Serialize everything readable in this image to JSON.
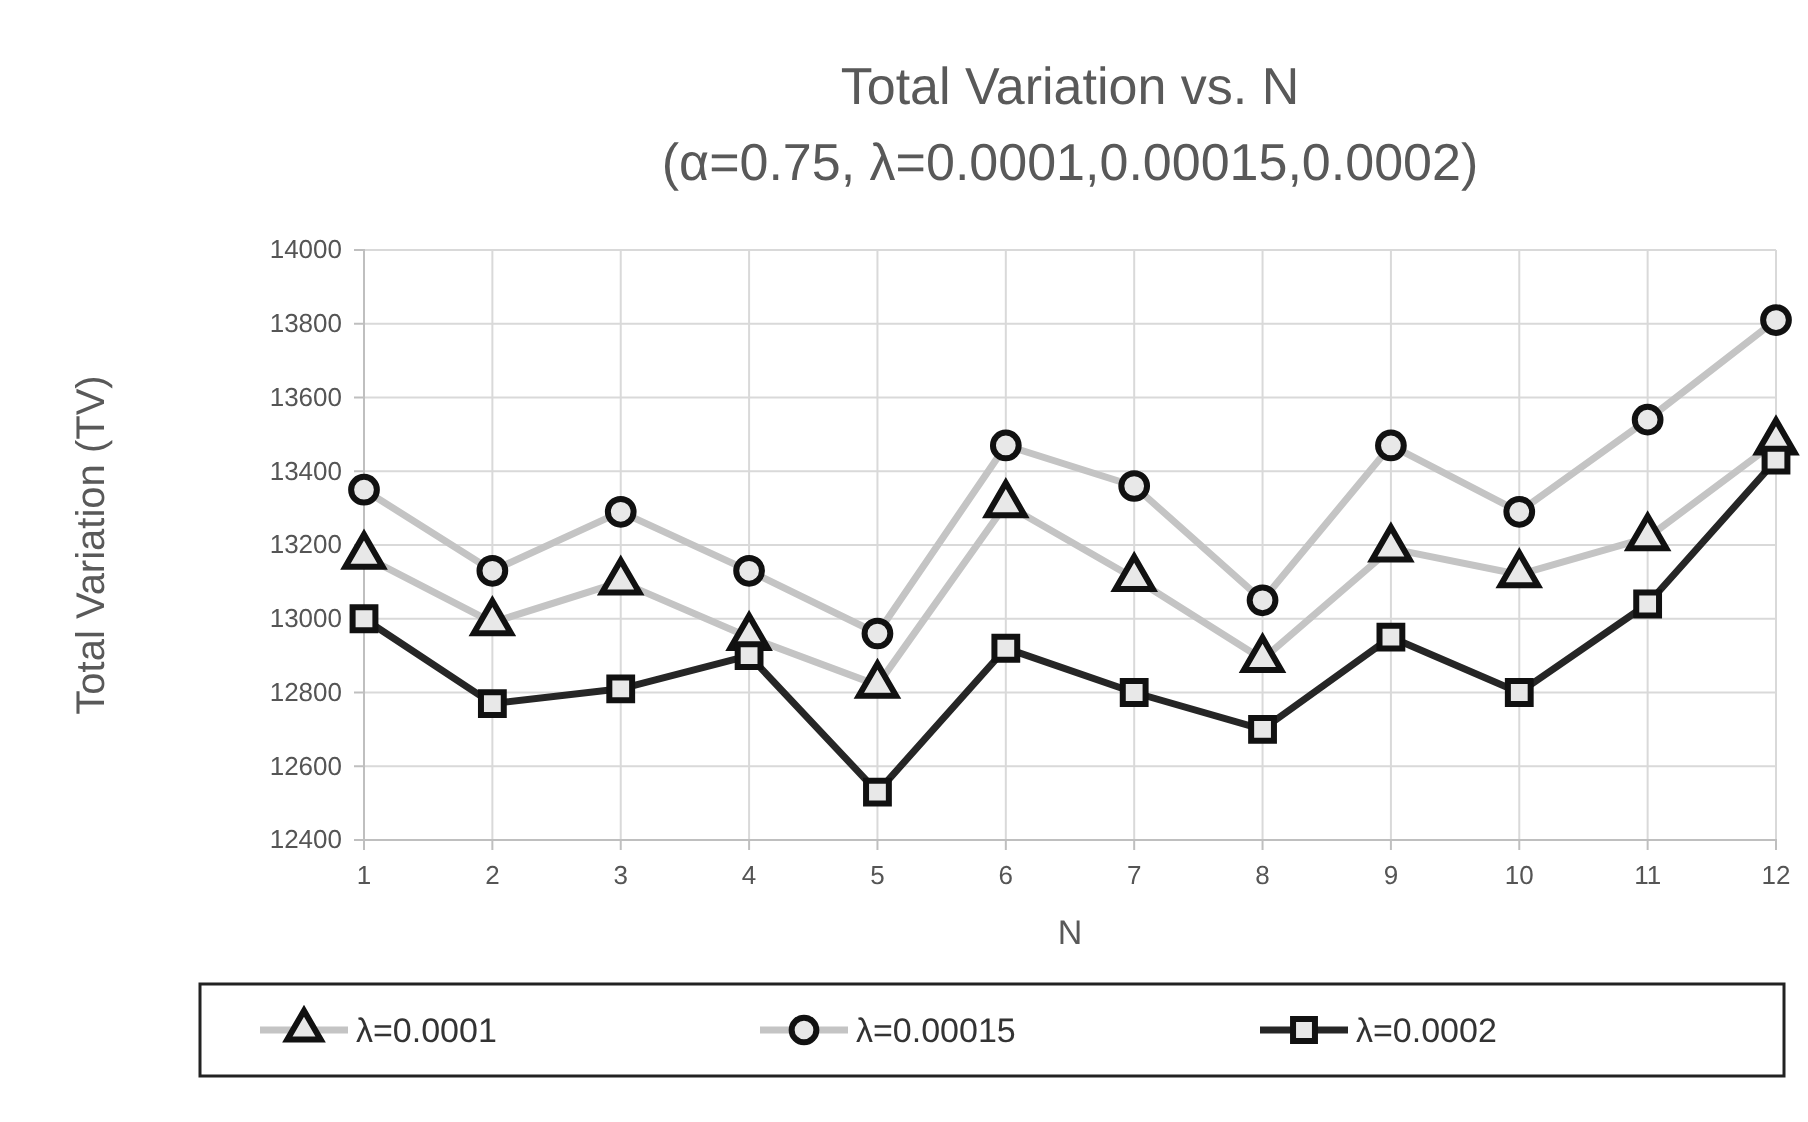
{
  "chart_data": {
    "type": "line",
    "title": "Total Variation vs. N",
    "subtitle": "(α=0.75, λ=0.0001,0.00015,0.0002)",
    "xlabel": "N",
    "ylabel": "Total Variation (TV)",
    "x": [
      1,
      2,
      3,
      4,
      5,
      6,
      7,
      8,
      9,
      10,
      11,
      12
    ],
    "xlim": [
      1,
      12
    ],
    "xticks": [
      1,
      2,
      3,
      4,
      5,
      6,
      7,
      8,
      9,
      10,
      11,
      12
    ],
    "ylim": [
      12400,
      14000
    ],
    "yticks": [
      12400,
      12600,
      12800,
      13000,
      13200,
      13400,
      13600,
      13800,
      14000
    ],
    "grid": true,
    "legend": "bottom",
    "series": [
      {
        "name": "λ=0.0001",
        "color": "#c4c4c4",
        "marker": "triangle",
        "values": [
          13170,
          12990,
          13100,
          12950,
          12820,
          13310,
          13110,
          12890,
          13190,
          13120,
          13220,
          13480
        ]
      },
      {
        "name": "λ=0.00015",
        "color": "#c4c4c4",
        "marker": "circle",
        "values": [
          13350,
          13130,
          13290,
          13130,
          12960,
          13470,
          13360,
          13050,
          13470,
          13290,
          13540,
          13810
        ]
      },
      {
        "name": "λ=0.0002",
        "color": "#262626",
        "marker": "square",
        "values": [
          13000,
          12770,
          12810,
          12900,
          12530,
          12920,
          12800,
          12700,
          12950,
          12800,
          13040,
          13430
        ]
      }
    ]
  }
}
